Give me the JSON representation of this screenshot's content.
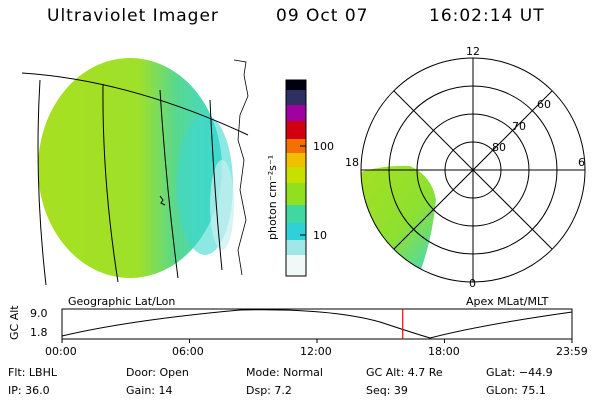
{
  "header": {
    "instrument": "Ultraviolet Imager",
    "date": "09 Oct 07",
    "time": "16:02:14 UT"
  },
  "colorbar": {
    "label": "photon cm⁻²s⁻¹",
    "ticks": [
      "100",
      "10"
    ]
  },
  "polar_plot": {
    "lat_labels": [
      "60",
      "70",
      "80"
    ],
    "mlt_labels": [
      "12",
      "18",
      "6",
      "0"
    ]
  },
  "altitude_strip": {
    "axis_label": "GC Alt",
    "y_ticks": [
      "9.0",
      "1.8"
    ],
    "left_caption": "Geographic Lat/Lon",
    "right_caption": "Apex MLat/MLT",
    "time_ticks": [
      "00:00",
      "06:00",
      "12:00",
      "18:00",
      "23:59"
    ],
    "current_marker_fraction": 0.6681
  },
  "info": {
    "flt": "Flt: LBHL",
    "door": "Door: Open",
    "mode": "Mode: Normal",
    "gc_alt": "GC Alt: 4.7 Re",
    "glat": "GLat:  −44.9",
    "ip": "IP: 36.0",
    "gain": "Gain: 14",
    "dsp": "Dsp:     7.2",
    "seq": "Seq: 39",
    "glon": "GLon:  75.1"
  },
  "colors": {
    "marker": "#ff0000",
    "image_main": "#a8e020",
    "image_edge": "#40d8c0"
  }
}
